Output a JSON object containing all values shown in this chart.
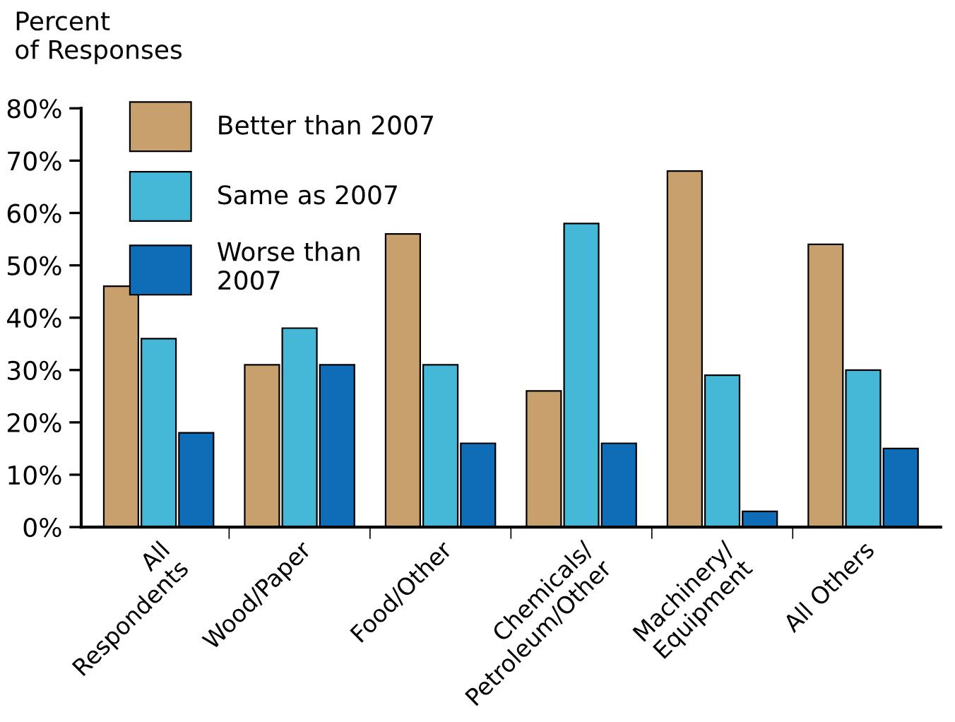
{
  "chart_data": {
    "type": "bar",
    "ylabel": "Percent\nof Responses",
    "categories": [
      "All\nRespondents",
      "Wood/Paper",
      "Food/Other",
      "Chemicals/\nPetroleum/Other",
      "Machinery/\nEquipment",
      "All Others"
    ],
    "series": [
      {
        "name": "Better than 2007",
        "color": "#c8a06e",
        "values": [
          46,
          31,
          56,
          26,
          68,
          54
        ]
      },
      {
        "name": "Same as 2007",
        "color": "#45b8d8",
        "values": [
          36,
          38,
          31,
          58,
          29,
          30
        ]
      },
      {
        "name": "Worse than\n2007",
        "color": "#0f6db8",
        "values": [
          18,
          31,
          16,
          16,
          3,
          15
        ]
      }
    ],
    "ylim": [
      0,
      80
    ],
    "yticks": [
      {
        "value": 0,
        "label": "0%"
      },
      {
        "value": 10,
        "label": "10%"
      },
      {
        "value": 20,
        "label": "20%"
      },
      {
        "value": 30,
        "label": "30%"
      },
      {
        "value": 40,
        "label": "40%"
      },
      {
        "value": 50,
        "label": "50%"
      },
      {
        "value": 60,
        "label": "60%"
      },
      {
        "value": 70,
        "label": "70%"
      },
      {
        "value": 80,
        "label": "80%"
      }
    ],
    "grid": false,
    "legend": "top left"
  }
}
